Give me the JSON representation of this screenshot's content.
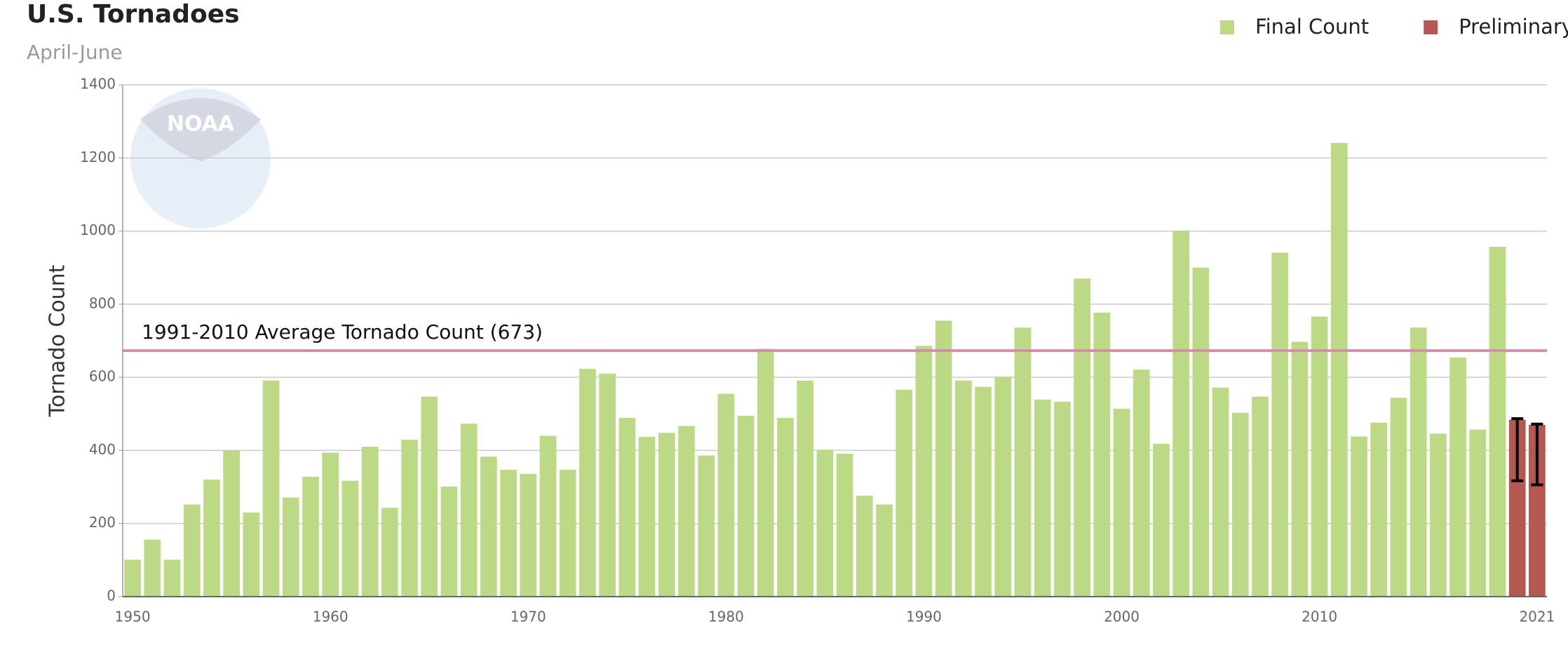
{
  "chart_data": {
    "type": "bar",
    "title": "U.S. Tornadoes",
    "subtitle": "April-June",
    "y_label": "Tornado Count",
    "watermark": "NOAA",
    "x": [
      1950,
      1951,
      1952,
      1953,
      1954,
      1955,
      1956,
      1957,
      1958,
      1959,
      1960,
      1961,
      1962,
      1963,
      1964,
      1965,
      1966,
      1967,
      1968,
      1969,
      1970,
      1971,
      1972,
      1973,
      1974,
      1975,
      1976,
      1977,
      1978,
      1979,
      1980,
      1981,
      1982,
      1983,
      1984,
      1985,
      1986,
      1987,
      1988,
      1989,
      1990,
      1991,
      1992,
      1993,
      1994,
      1995,
      1996,
      1997,
      1998,
      1999,
      2000,
      2001,
      2002,
      2003,
      2004,
      2005,
      2006,
      2007,
      2008,
      2009,
      2010,
      2011,
      2012,
      2013,
      2014,
      2015,
      2016,
      2017,
      2018,
      2019,
      2020,
      2021
    ],
    "series": [
      {
        "name": "Final Count",
        "color": "#bcd985",
        "values": [
          101,
          156,
          101,
          252,
          320,
          399,
          230,
          591,
          271,
          328,
          394,
          317,
          410,
          243,
          429,
          547,
          301,
          473,
          383,
          347,
          336,
          440,
          347,
          623,
          610,
          489,
          437,
          448,
          467,
          386,
          555,
          495,
          678,
          489,
          591,
          402,
          391,
          276,
          252,
          566,
          686,
          755,
          591,
          574,
          602,
          736,
          539,
          533,
          870,
          777,
          514,
          621,
          418,
          1001,
          900,
          572,
          503,
          547,
          941,
          697,
          766,
          1241,
          438,
          476,
          544,
          736,
          446,
          654,
          457,
          957,
          null,
          null
        ]
      },
      {
        "name": "Preliminary",
        "color": "#b5584f",
        "values": [
          null,
          null,
          null,
          null,
          null,
          null,
          null,
          null,
          null,
          null,
          null,
          null,
          null,
          null,
          null,
          null,
          null,
          null,
          null,
          null,
          null,
          null,
          null,
          null,
          null,
          null,
          null,
          null,
          null,
          null,
          null,
          null,
          null,
          null,
          null,
          null,
          null,
          null,
          null,
          null,
          null,
          null,
          null,
          null,
          null,
          null,
          null,
          null,
          null,
          null,
          null,
          null,
          null,
          null,
          null,
          null,
          null,
          null,
          null,
          null,
          null,
          null,
          null,
          null,
          null,
          null,
          null,
          null,
          null,
          null,
          484,
          470
        ],
        "error_low": [
          null,
          null,
          null,
          null,
          null,
          null,
          null,
          null,
          null,
          null,
          null,
          null,
          null,
          null,
          null,
          null,
          null,
          null,
          null,
          null,
          null,
          null,
          null,
          null,
          null,
          null,
          null,
          null,
          null,
          null,
          null,
          null,
          null,
          null,
          null,
          null,
          null,
          null,
          null,
          null,
          null,
          null,
          null,
          null,
          null,
          null,
          null,
          null,
          null,
          null,
          null,
          null,
          null,
          null,
          null,
          null,
          null,
          null,
          null,
          null,
          null,
          null,
          null,
          null,
          null,
          null,
          null,
          null,
          null,
          null,
          317,
          306
        ],
        "error_high": [
          null,
          null,
          null,
          null,
          null,
          null,
          null,
          null,
          null,
          null,
          null,
          null,
          null,
          null,
          null,
          null,
          null,
          null,
          null,
          null,
          null,
          null,
          null,
          null,
          null,
          null,
          null,
          null,
          null,
          null,
          null,
          null,
          null,
          null,
          null,
          null,
          null,
          null,
          null,
          null,
          null,
          null,
          null,
          null,
          null,
          null,
          null,
          null,
          null,
          null,
          null,
          null,
          null,
          null,
          null,
          null,
          null,
          null,
          null,
          null,
          null,
          null,
          null,
          null,
          null,
          null,
          null,
          null,
          null,
          null,
          487,
          472
        ]
      }
    ],
    "reference_line": {
      "value": 673,
      "label": "1991-2010 Average Tornado Count (673)",
      "color": "#d98ab0"
    },
    "xlim": [
      1949.5,
      2021.5
    ],
    "xticks": [
      1950,
      1960,
      1970,
      1980,
      1990,
      2000,
      2010,
      2021
    ],
    "ylim": [
      0,
      1400
    ],
    "yticks": [
      0,
      200,
      400,
      600,
      800,
      1000,
      1200,
      1400
    ],
    "grid": true
  }
}
